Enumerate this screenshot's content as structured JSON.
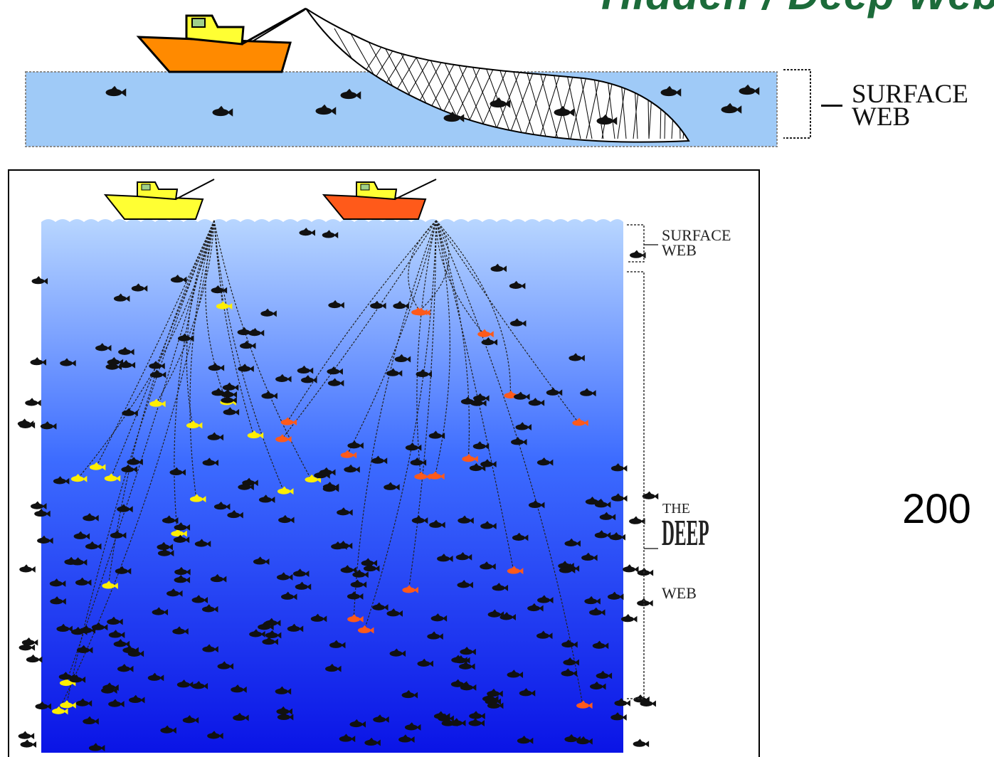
{
  "title": "Hidden / Deep Web",
  "year_text": "200",
  "top_panel": {
    "label_line1": "SURFACE",
    "label_line2": "WEB"
  },
  "bottom_panel": {
    "surface_label_line1": "SURFACE",
    "surface_label_line2": "WEB",
    "deep_label_the": "THE",
    "deep_label_deep": "DEEP",
    "deep_label_web": "WEB"
  },
  "colors": {
    "surface_water": "#9fcaf7",
    "deep_water_top": "#b8d6ff",
    "deep_water_bottom": "#0a14e6",
    "boat_orange": "#ff8a00",
    "boat_yellow": "#ffff33",
    "fish_black": "#111111",
    "fish_yellow": "#ffee00",
    "fish_orange": "#ff5a1a",
    "title_green": "#1c6b3a"
  },
  "icons": [
    "fishing-boat-icon",
    "fish-icon",
    "net-icon"
  ]
}
